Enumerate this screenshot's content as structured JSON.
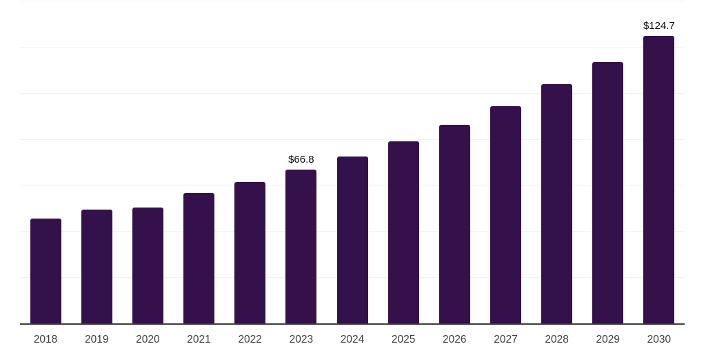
{
  "chart_data": {
    "type": "bar",
    "categories": [
      "2018",
      "2019",
      "2020",
      "2021",
      "2022",
      "2023",
      "2024",
      "2025",
      "2026",
      "2027",
      "2028",
      "2029",
      "2030"
    ],
    "values": [
      45.5,
      49.4,
      50.4,
      56.5,
      61.3,
      66.8,
      72.4,
      79.1,
      86.2,
      94.2,
      103.7,
      113.4,
      124.7
    ],
    "data_labels": [
      "",
      "",
      "",
      "",
      "",
      "$66.8",
      "",
      "",
      "",
      "",
      "",
      "",
      "$124.7"
    ],
    "ylim": [
      0,
      140
    ],
    "grid_step": 20,
    "grid": "horizontal",
    "y_axis_tick_labels_visible": false,
    "legend_position": "none"
  },
  "colors": {
    "bar": "#34114b",
    "gridline": "#f1f1f1",
    "axis_line": "#3b3b3b",
    "tick_label": "#3d3d3d",
    "value_label": "#0b0b0b",
    "background": "#ffffff"
  }
}
